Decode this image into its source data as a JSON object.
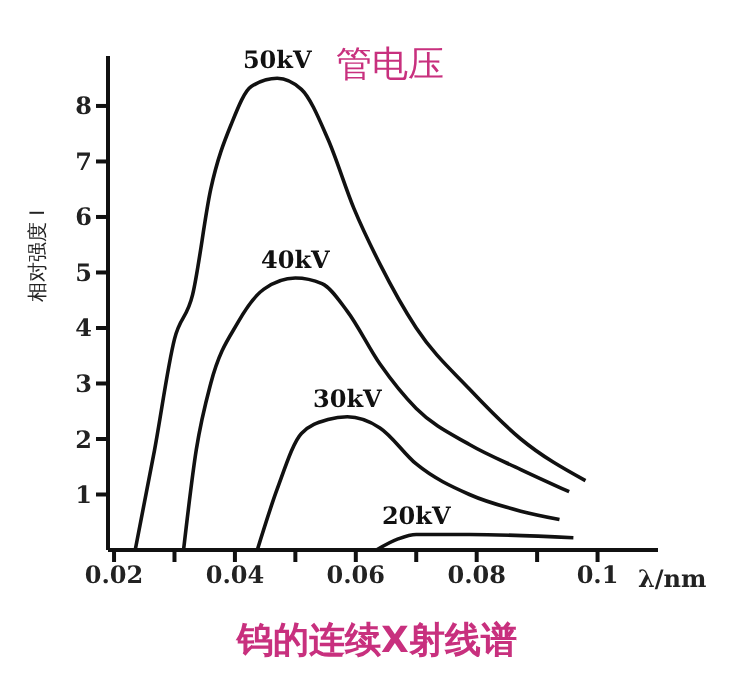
{
  "chart_data": {
    "type": "line",
    "title": "钨的连续X射线谱",
    "ylabel": "相对强度 I",
    "xlabel": "λ/nm",
    "annotations": [
      "管电压"
    ],
    "xlim": [
      0.019,
      0.11
    ],
    "ylim": [
      0,
      8.9
    ],
    "xticks": [
      0.02,
      {
        "value": 0.03,
        "label": null
      },
      0.04,
      {
        "value": 0.05,
        "label": null
      },
      0.06,
      {
        "value": 0.07,
        "label": null
      },
      0.08,
      {
        "value": 0.09,
        "label": null
      },
      0.1
    ],
    "yticks": [
      1,
      2,
      3,
      4,
      5,
      6,
      7,
      8
    ],
    "grid": false,
    "legend": false,
    "marker": "none",
    "line_style": "solid",
    "series": [
      {
        "name": "50kV",
        "color": "#111111",
        "x": [
          0.0235,
          0.0267,
          0.03,
          0.033,
          0.036,
          0.0395,
          0.0427,
          0.047,
          0.051,
          0.0554,
          0.0597,
          0.064,
          0.07,
          0.0788,
          0.0873,
          0.098
        ],
        "values": [
          0,
          1.8,
          3.8,
          4.6,
          6.5,
          7.7,
          8.35,
          8.5,
          8.3,
          7.4,
          6.15,
          5.15,
          4.0,
          2.9,
          2.0,
          1.25
        ]
      },
      {
        "name": "40kV",
        "color": "#111111",
        "x": [
          0.0315,
          0.0336,
          0.036,
          0.0405,
          0.0448,
          0.05,
          0.0544,
          0.0586,
          0.064,
          0.07,
          0.0788,
          0.0873,
          0.0953
        ],
        "values": [
          0,
          1.8,
          3.0,
          4.1,
          4.7,
          4.9,
          4.8,
          4.3,
          3.35,
          2.55,
          1.9,
          1.45,
          1.05
        ]
      },
      {
        "name": "30kV",
        "color": "#111111",
        "x": [
          0.0437,
          0.047,
          0.051,
          0.0554,
          0.0586,
          0.064,
          0.07,
          0.0788,
          0.0873,
          0.0937
        ],
        "values": [
          0,
          1.1,
          2.1,
          2.35,
          2.4,
          2.2,
          1.55,
          1.0,
          0.7,
          0.55
        ]
      },
      {
        "name": "20kV",
        "color": "#111111",
        "x": [
          0.0634,
          0.067,
          0.07,
          0.0788,
          0.096
        ],
        "values": [
          0,
          0.2,
          0.28,
          0.28,
          0.22
        ]
      }
    ]
  }
}
